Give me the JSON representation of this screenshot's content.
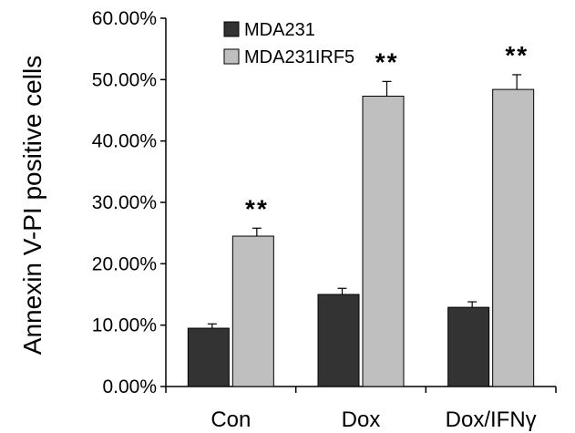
{
  "chart_data": {
    "type": "bar",
    "ylabel": "Annexin V-PI positive cells",
    "xlabel": "",
    "categories": [
      "Con",
      "Dox",
      "Dox/IFNγ"
    ],
    "series": [
      {
        "name": "MDA231",
        "color": "#333333",
        "values": [
          9.5,
          15.0,
          12.9
        ],
        "errors": [
          0.7,
          1.0,
          0.9
        ]
      },
      {
        "name": "MDA231IRF5",
        "color": "#bfbfbf",
        "values": [
          24.5,
          47.3,
          48.4
        ],
        "errors": [
          1.3,
          2.4,
          2.4
        ]
      }
    ],
    "significance": [
      "**",
      "**",
      "**"
    ],
    "ylim": [
      0,
      60
    ],
    "yticks": [
      0,
      10,
      20,
      30,
      40,
      50,
      60
    ],
    "ytick_labels": [
      "0.00%",
      "10.00%",
      "20.00%",
      "30.00%",
      "40.00%",
      "50.00%",
      "60.00%"
    ],
    "legend_position": "top-left",
    "grid": false
  }
}
